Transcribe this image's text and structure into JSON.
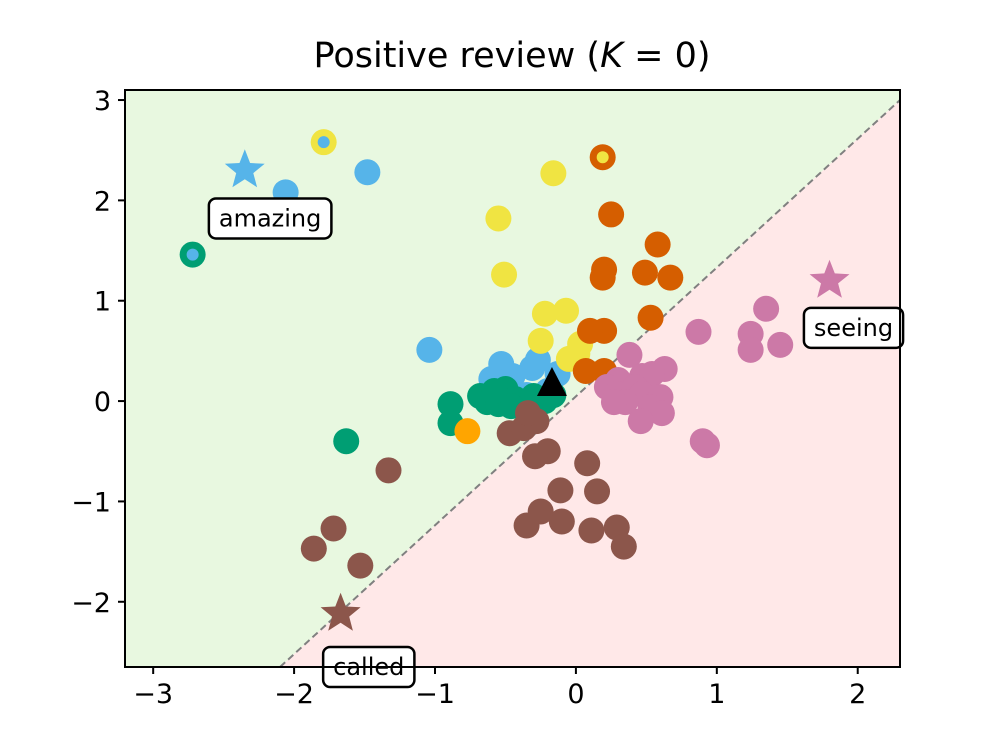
{
  "chart_data": {
    "type": "scatter",
    "title": "Positive review (K = 0)",
    "title_parts": {
      "prefix": "Positive review (",
      "k_symbol": "K",
      "suffix": " = 0)"
    },
    "xlabel": "",
    "ylabel": "",
    "xlim": [
      -3.2,
      2.3
    ],
    "ylim": [
      -2.65,
      3.1
    ],
    "xticks": [
      -3,
      -2,
      -1,
      0,
      1,
      2
    ],
    "yticks": [
      -2,
      -1,
      0,
      1,
      2,
      3
    ],
    "xtick_labels": [
      "−3",
      "−2",
      "−1",
      "0",
      "1",
      "2"
    ],
    "ytick_labels": [
      "−2",
      "−1",
      "0",
      "1",
      "2",
      "3"
    ],
    "grid": false,
    "colors": {
      "positive_region": "#e8f8e0",
      "negative_region": "#ffe8e8",
      "boundary": "#808080",
      "sky_blue": "#56b4e9",
      "green": "#009e73",
      "yellow": "#f0e442",
      "vermillion": "#d55e00",
      "pink": "#cc79a7",
      "brown": "#8c564b",
      "orange": "#ffa500",
      "marker_black": "#000000"
    },
    "decision_boundary": {
      "points": [
        [
          -2.1,
          -2.65
        ],
        [
          2.3,
          3.0
        ]
      ]
    },
    "series": [
      {
        "color": "#56b4e9",
        "points": [
          [
            -2.06,
            2.08
          ],
          [
            -1.48,
            2.28
          ],
          [
            -1.04,
            0.51
          ],
          [
            -0.53,
            0.37
          ],
          [
            -0.27,
            0.41
          ],
          [
            -0.31,
            0.33
          ],
          [
            -0.13,
            0.27
          ],
          [
            -0.6,
            0.22
          ],
          [
            -0.45,
            0.25
          ],
          [
            -0.2,
            0.1
          ],
          [
            -0.35,
            0.06
          ]
        ]
      },
      {
        "color": "#009e73",
        "points": [
          [
            -1.63,
            -0.4
          ],
          [
            -0.89,
            -0.03
          ],
          [
            -0.89,
            -0.22
          ],
          [
            -0.68,
            0.05
          ],
          [
            -0.63,
            -0.01
          ],
          [
            -0.55,
            -0.03
          ],
          [
            -0.5,
            0.12
          ],
          [
            -0.43,
            0.02
          ],
          [
            -0.37,
            -0.02
          ],
          [
            -0.3,
            0.05
          ],
          [
            -0.22,
            0.0
          ],
          [
            -0.16,
            0.06
          ],
          [
            -0.46,
            -0.05
          ],
          [
            -0.58,
            0.1
          ]
        ]
      },
      {
        "color": "#f0e442",
        "points": [
          [
            -0.16,
            2.27
          ],
          [
            -0.55,
            1.82
          ],
          [
            -0.51,
            1.26
          ],
          [
            -0.22,
            0.87
          ],
          [
            -0.07,
            0.9
          ],
          [
            -0.25,
            0.6
          ],
          [
            0.03,
            0.57
          ],
          [
            0.01,
            0.47
          ],
          [
            -0.05,
            0.42
          ]
        ]
      },
      {
        "color": "#d55e00",
        "points": [
          [
            0.25,
            1.86
          ],
          [
            0.58,
            1.56
          ],
          [
            0.2,
            1.31
          ],
          [
            0.19,
            1.23
          ],
          [
            0.49,
            1.28
          ],
          [
            0.67,
            1.23
          ],
          [
            0.53,
            0.83
          ],
          [
            0.2,
            0.7
          ],
          [
            0.1,
            0.7
          ],
          [
            0.07,
            0.3
          ],
          [
            0.2,
            0.3
          ]
        ]
      },
      {
        "color": "#cc79a7",
        "points": [
          [
            1.35,
            0.92
          ],
          [
            0.87,
            0.69
          ],
          [
            1.24,
            0.67
          ],
          [
            1.45,
            0.56
          ],
          [
            1.24,
            0.51
          ],
          [
            0.9,
            -0.4
          ],
          [
            0.93,
            -0.44
          ],
          [
            0.38,
            0.46
          ],
          [
            0.63,
            0.32
          ],
          [
            0.3,
            0.21
          ],
          [
            0.47,
            0.25
          ],
          [
            0.54,
            0.27
          ],
          [
            0.42,
            0.14
          ],
          [
            0.22,
            0.14
          ],
          [
            0.29,
            0.07
          ],
          [
            0.47,
            0.07
          ],
          [
            0.6,
            0.04
          ],
          [
            0.35,
            -0.01
          ],
          [
            0.53,
            -0.06
          ],
          [
            0.61,
            -0.12
          ],
          [
            0.46,
            -0.2
          ],
          [
            0.27,
            -0.01
          ]
        ]
      },
      {
        "color": "#8c564b",
        "points": [
          [
            -1.86,
            -1.47
          ],
          [
            -1.72,
            -1.27
          ],
          [
            -1.53,
            -1.64
          ],
          [
            -1.33,
            -0.69
          ],
          [
            -0.47,
            -0.32
          ],
          [
            -0.37,
            -0.27
          ],
          [
            -0.28,
            -0.2
          ],
          [
            -0.2,
            -0.5
          ],
          [
            -0.29,
            -0.55
          ],
          [
            -0.34,
            -0.12
          ],
          [
            0.08,
            -0.62
          ],
          [
            0.15,
            -0.9
          ],
          [
            -0.11,
            -0.89
          ],
          [
            -0.35,
            -1.24
          ],
          [
            -0.25,
            -1.1
          ],
          [
            -0.1,
            -1.2
          ],
          [
            0.11,
            -1.29
          ],
          [
            0.29,
            -1.26
          ],
          [
            0.34,
            -1.45
          ]
        ]
      },
      {
        "color": "#ffa500",
        "points": [
          [
            -0.77,
            -0.3
          ]
        ]
      }
    ],
    "ringed_points": [
      {
        "outer_color": "#f0e442",
        "inner_color": "#56b4e9",
        "point": [
          -1.79,
          2.58
        ]
      },
      {
        "outer_color": "#d55e00",
        "inner_color": "#f0e442",
        "point": [
          0.19,
          2.43
        ]
      },
      {
        "outer_color": "#009e73",
        "inner_color": "#56b4e9",
        "point": [
          -2.72,
          1.46
        ]
      }
    ],
    "query_point": {
      "shape": "triangle",
      "color": "#000000",
      "point": [
        -0.17,
        0.17
      ]
    },
    "stars": [
      {
        "color": "#56b4e9",
        "point": [
          -2.35,
          2.3
        ]
      },
      {
        "color": "#cc79a7",
        "point": [
          1.8,
          1.2
        ]
      },
      {
        "color": "#8c564b",
        "point": [
          -1.67,
          -2.12
        ]
      }
    ],
    "annotations": [
      {
        "text": "amazing",
        "point": [
          -2.17,
          1.82
        ]
      },
      {
        "text": "seeing",
        "point": [
          1.97,
          0.73
        ]
      },
      {
        "text": "called",
        "point": [
          -1.47,
          -2.65
        ]
      }
    ]
  }
}
